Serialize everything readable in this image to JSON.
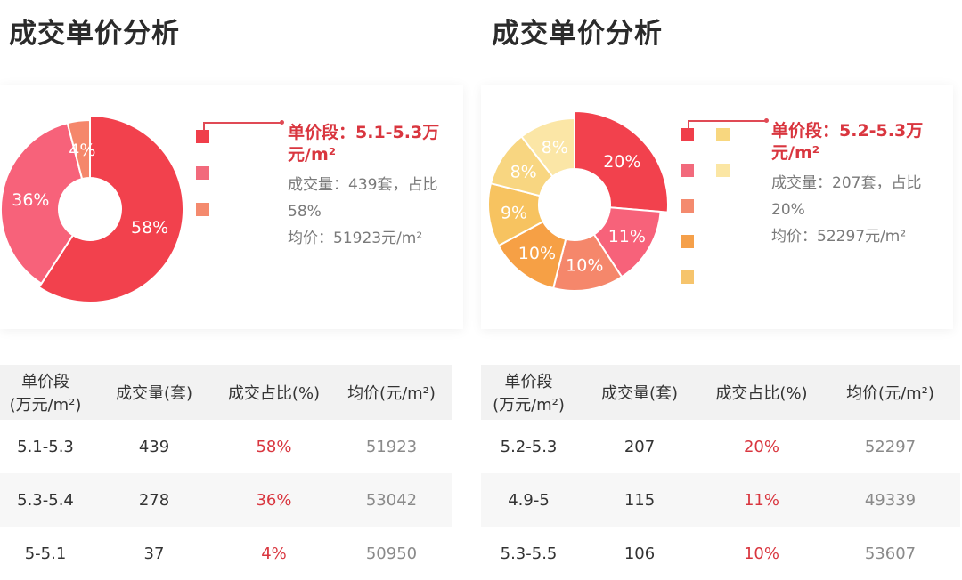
{
  "left": {
    "title": "成交单价分析",
    "info": {
      "segment_label": "单价段：5.1-5.3万元/m²",
      "volume_text": "成交量：439套，占比58%",
      "avg_text": "均价：51923元/m²"
    },
    "legend_colors": [
      "#f03e4a",
      "#f26a7c",
      "#f48a6e"
    ],
    "table": {
      "headers": [
        "单价段\n(万元/m²)",
        "成交量(套)",
        "成交占比(%)",
        "均价(元/m²)"
      ],
      "rows": [
        [
          "5.1-5.3",
          "439",
          "58%",
          "51923"
        ],
        [
          "5.3-5.4",
          "278",
          "36%",
          "53042"
        ],
        [
          "5-5.1",
          "37",
          "4%",
          "50950"
        ]
      ]
    }
  },
  "right": {
    "title": "成交单价分析",
    "info": {
      "segment_label": "单价段：5.2-5.3万元/m²",
      "volume_text": "成交量：207套，占比20%",
      "avg_text": "均价：52297元/m²"
    },
    "legend_colors": [
      "#f03e4a",
      "#f26a7c",
      "#f48a6e",
      "#f5a04a",
      "#f6c46c",
      "#f8d77f",
      "#fbe6a4"
    ],
    "table": {
      "headers": [
        "单价段\n(万元/m²)",
        "成交量(套)",
        "成交占比(%)",
        "均价(元/m²)"
      ],
      "rows": [
        [
          "5.2-5.3",
          "207",
          "20%",
          "52297"
        ],
        [
          "4.9-5",
          "115",
          "11%",
          "49339"
        ],
        [
          "5.3-5.5",
          "106",
          "10%",
          "53607"
        ]
      ]
    }
  },
  "chart_data": [
    {
      "type": "pie",
      "categories": [
        "5.1-5.3",
        "5.3-5.4",
        "5-5.1"
      ],
      "values": [
        58,
        36,
        4
      ],
      "labels": [
        "58%",
        "36%",
        "4%"
      ],
      "colors": [
        "#f2414d",
        "#f7627a",
        "#f5876b"
      ],
      "highlighted": 0
    },
    {
      "type": "pie",
      "categories": [
        "5.2-5.3",
        "4.9-5",
        "5.3-5.5",
        "",
        "",
        "",
        ""
      ],
      "values": [
        20,
        11,
        10,
        10,
        9,
        8,
        8
      ],
      "labels": [
        "20%",
        "11%",
        "10%",
        "10%",
        "9%",
        "8%",
        "8%"
      ],
      "colors": [
        "#f2414d",
        "#f7627a",
        "#f5876b",
        "#f6a045",
        "#f7c360",
        "#f8d681",
        "#fbe6a6"
      ],
      "highlighted": 0
    }
  ]
}
